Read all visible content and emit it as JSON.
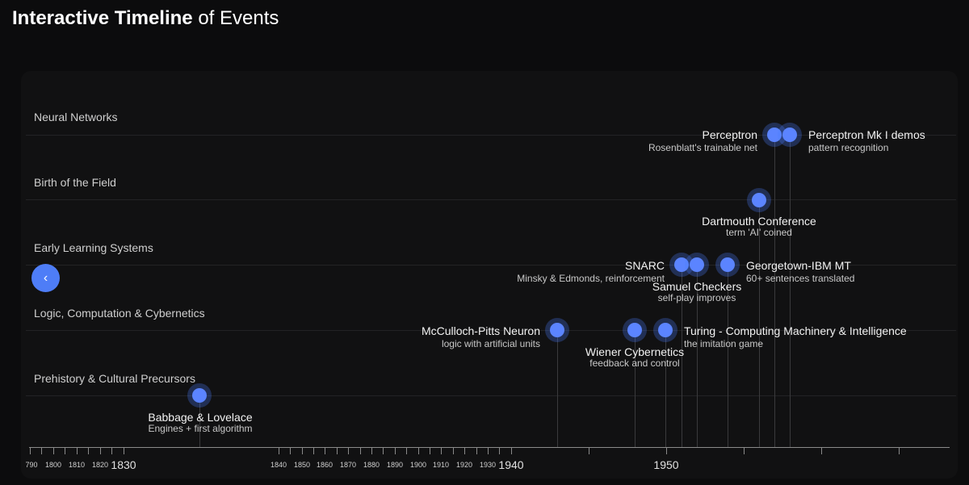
{
  "page": {
    "title_bold": "Interactive Timeline",
    "title_rest": " of Events"
  },
  "lanes": [
    {
      "label": "Neural Networks"
    },
    {
      "label": "Birth of the Field"
    },
    {
      "label": "Early Learning Systems"
    },
    {
      "label": "Logic, Computation & Cybernetics"
    },
    {
      "label": "Prehistory & Cultural Precursors"
    }
  ],
  "events": {
    "perceptron": {
      "title": "Perceptron",
      "subtitle": "Rosenblatt's trainable net"
    },
    "perceptron_mk1": {
      "title": "Perceptron Mk I demos",
      "subtitle": "pattern recognition"
    },
    "dartmouth": {
      "title": "Dartmouth Conference",
      "subtitle": "term 'AI' coined"
    },
    "snarc": {
      "title": "SNARC",
      "subtitle": "Minsky & Edmonds, reinforcement"
    },
    "samuel": {
      "title": "Samuel Checkers",
      "subtitle": "self-play improves"
    },
    "georgetown": {
      "title": "Georgetown-IBM MT",
      "subtitle": "60+ sentences translated"
    },
    "mcculloch": {
      "title": "McCulloch-Pitts Neuron",
      "subtitle": "logic with artificial units"
    },
    "wiener": {
      "title": "Wiener Cybernetics",
      "subtitle": "feedback and control"
    },
    "turing": {
      "title": "Turing - Computing Machinery & Intelligence",
      "subtitle": "the imitation game"
    },
    "babbage": {
      "title": "Babbage & Lovelace",
      "subtitle": "Engines + first algorithm"
    }
  },
  "axis": {
    "minor_labels": [
      "790",
      "1800",
      "1810",
      "1820",
      "1840",
      "1850",
      "1860",
      "1870",
      "1880",
      "1890",
      "1900",
      "1910",
      "1920",
      "1930"
    ],
    "major_labels": [
      "1830",
      "1940",
      "1950"
    ]
  },
  "nav": {
    "prev_icon": "‹"
  }
}
